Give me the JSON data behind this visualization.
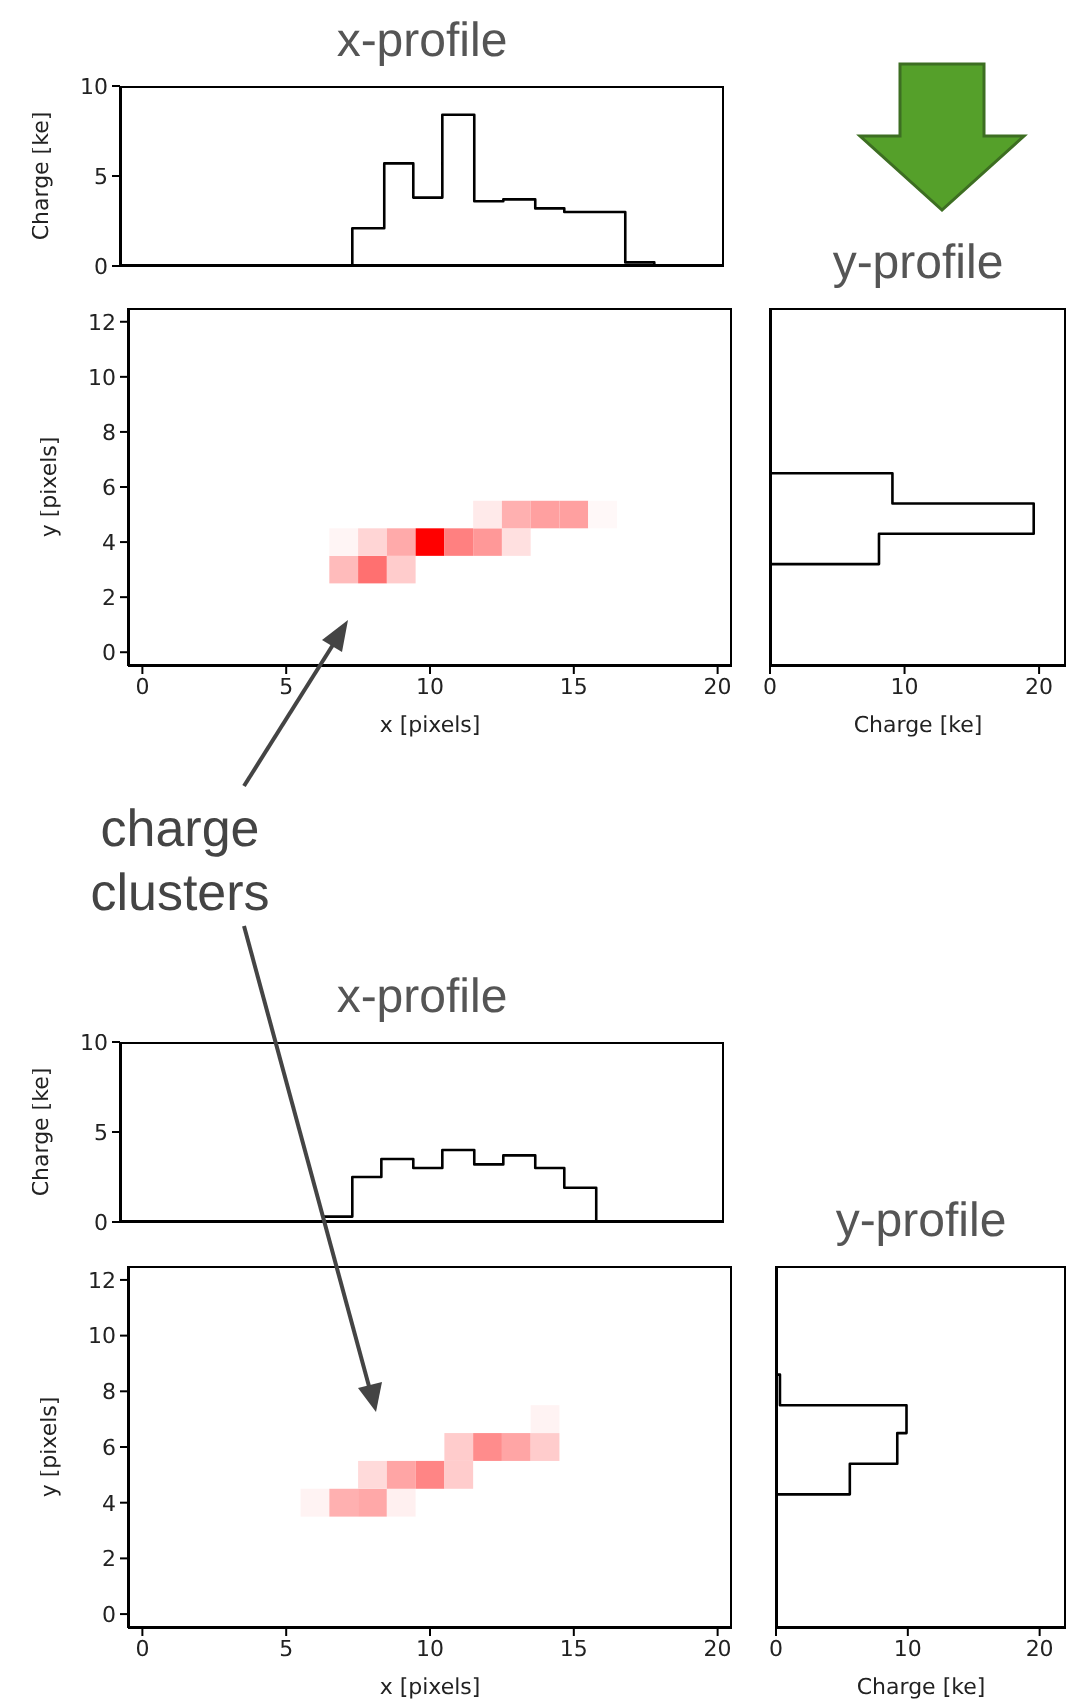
{
  "chart_data": [
    {
      "type": "step",
      "title": "x-profile",
      "ylabel": "Charge [ke]",
      "x": [
        0,
        7.3,
        8.4,
        9.4,
        10.4,
        11.5,
        12.5,
        13.6,
        14.6,
        15.7,
        16.7,
        17.7
      ],
      "values": [
        0,
        2.1,
        5.7,
        3.8,
        8.4,
        3.6,
        3.7,
        3.2,
        3.0,
        3.0,
        0.2,
        0
      ],
      "color": "#000000",
      "xlim": [
        -0.7,
        20.1
      ],
      "xticks": [
        0,
        5,
        10,
        15,
        20
      ],
      "ylim": [
        0,
        10
      ],
      "yticks": [
        0,
        5,
        10
      ],
      "tick_labels": "y"
    },
    {
      "type": "scatter",
      "xlabel": "x [pixels]",
      "ylabel": "y [pixels]",
      "marker": "square",
      "x": [
        7,
        8,
        9,
        7,
        8,
        9,
        10,
        11,
        12,
        13,
        12,
        13,
        14,
        15,
        16
      ],
      "values": [
        3,
        3,
        3,
        4,
        4,
        4,
        4,
        4,
        4,
        4,
        5,
        5,
        5,
        5,
        5
      ],
      "colors": [
        "#ffbbbb",
        "#ff7070",
        "#ffcccc",
        "#fff5f5",
        "#ffd5d5",
        "#ffaaaa",
        "#ff0000",
        "#ff8080",
        "#ff9898",
        "#ffe0e0",
        "#ffeaea",
        "#ffb0b0",
        "#ffa0a0",
        "#ffa0a0",
        "#fff8f8"
      ],
      "xlim": [
        -0.5,
        20.5
      ],
      "xticks": [
        0,
        5,
        10,
        15,
        20
      ],
      "ylim": [
        -0.5,
        12.5
      ],
      "yticks": [
        0,
        2,
        4,
        6,
        8,
        10,
        12
      ],
      "annotations": [
        "charge clusters"
      ]
    },
    {
      "type": "step",
      "orientation": "horizontal",
      "title": "y-profile",
      "xlabel": "Charge [ke]",
      "x": [
        -0.5,
        3.2,
        4.3,
        5.4,
        6.5,
        12.5
      ],
      "values": [
        0,
        8.1,
        19.6,
        9.1,
        0,
        0
      ],
      "color": "#000000",
      "xlim": [
        0,
        22
      ],
      "xticks": [
        0,
        10,
        20
      ],
      "ylim": [
        -0.5,
        12.5
      ],
      "yticks": [
        0,
        2,
        4,
        6,
        8,
        10,
        12
      ],
      "tick_labels": "x"
    },
    {
      "type": "step",
      "title": "x-profile",
      "ylabel": "Charge [ke]",
      "x": [
        0,
        6.3,
        7.3,
        8.3,
        9.4,
        10.4,
        11.5,
        12.5,
        13.6,
        14.6,
        15.7
      ],
      "values": [
        0,
        0.3,
        2.5,
        3.5,
        3.0,
        4.0,
        3.2,
        3.7,
        3.0,
        1.9,
        0
      ],
      "color": "#000000",
      "xlim": [
        -0.7,
        20.1
      ],
      "xticks": [
        0,
        5,
        10,
        15,
        20
      ],
      "ylim": [
        0,
        10
      ],
      "yticks": [
        0,
        5,
        10
      ],
      "tick_labels": "y"
    },
    {
      "type": "scatter",
      "xlabel": "x [pixels]",
      "ylabel": "y [pixels]",
      "marker": "square",
      "x": [
        6,
        7,
        8,
        9,
        8,
        9,
        10,
        11,
        11,
        12,
        13,
        14,
        14
      ],
      "values": [
        4,
        4,
        4,
        4,
        5,
        5,
        5,
        5,
        6,
        6,
        6,
        6,
        7
      ],
      "colors": [
        "#fff3f3",
        "#ffb0b0",
        "#ffa8a8",
        "#fff0f0",
        "#ffdada",
        "#ffa5a5",
        "#ff8585",
        "#ffcccc",
        "#ffcccc",
        "#ff8c8c",
        "#ffa5a5",
        "#ffcccc",
        "#fff3f3"
      ],
      "xlim": [
        -0.5,
        20.5
      ],
      "xticks": [
        0,
        5,
        10,
        15,
        20
      ],
      "ylim": [
        -0.5,
        12.5
      ],
      "yticks": [
        0,
        2,
        4,
        6,
        8,
        10,
        12
      ]
    },
    {
      "type": "step",
      "orientation": "horizontal",
      "title": "y-profile",
      "xlabel": "Charge [ke]",
      "x": [
        -0.5,
        4.3,
        5.4,
        6.5,
        7.5,
        8.6,
        12.5
      ],
      "values": [
        0,
        5.6,
        9.2,
        9.9,
        0.3,
        0,
        0
      ],
      "color": "#000000",
      "xlim": [
        0,
        22
      ],
      "xticks": [
        0,
        10,
        20
      ],
      "ylim": [
        -0.5,
        12.5
      ],
      "yticks": [
        0,
        2,
        4,
        6,
        8,
        10,
        12
      ],
      "tick_labels": "x"
    }
  ]
}
